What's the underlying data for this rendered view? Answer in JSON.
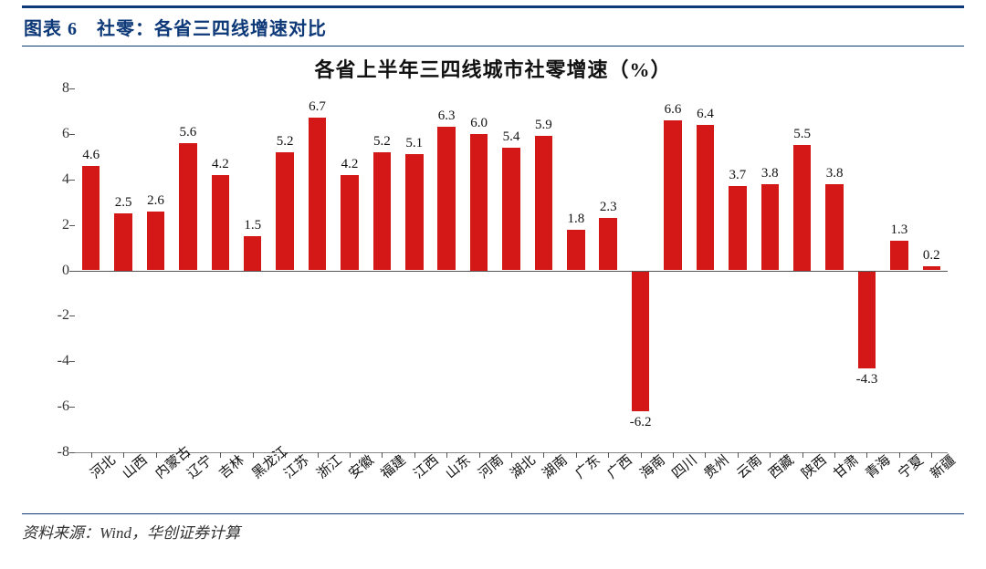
{
  "header": {
    "caption": "图表 6　社零：各省三四线增速对比"
  },
  "chart": {
    "type": "bar",
    "title": "各省上半年三四线城市社零增速（%）",
    "title_fontsize": 22,
    "bar_color": "#d41818",
    "background_color": "#ffffff",
    "axis_color": "#555555",
    "label_fontsize": 15,
    "ylim": [
      -8,
      8
    ],
    "ytick_step": 2,
    "bar_width_ratio": 0.55,
    "categories": [
      "河北",
      "山西",
      "内蒙古",
      "辽宁",
      "吉林",
      "黑龙江",
      "江苏",
      "浙江",
      "安徽",
      "福建",
      "江西",
      "山东",
      "河南",
      "湖北",
      "湖南",
      "广东",
      "广西",
      "海南",
      "四川",
      "贵州",
      "云南",
      "西藏",
      "陕西",
      "甘肃",
      "青海",
      "宁夏",
      "新疆"
    ],
    "values": [
      4.6,
      2.5,
      2.6,
      5.6,
      4.2,
      1.5,
      5.2,
      6.7,
      4.2,
      5.2,
      5.1,
      6.3,
      6.0,
      5.4,
      5.9,
      1.8,
      2.3,
      -6.2,
      6.6,
      6.4,
      3.7,
      3.8,
      5.5,
      3.8,
      -4.3,
      1.3,
      0.2
    ]
  },
  "footer": {
    "source": "资料来源：Wind，华创证券计算"
  },
  "theme": {
    "brand_color": "#0d3978"
  }
}
